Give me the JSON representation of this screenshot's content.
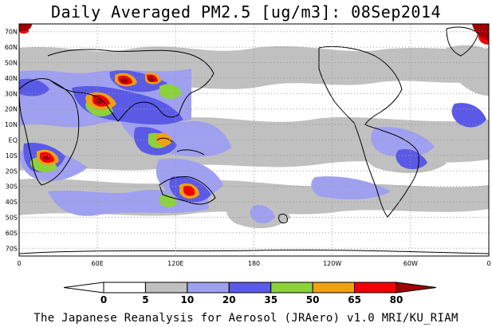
{
  "title": "Daily Averaged PM2.5 [ug/m3]: 08Sep2014",
  "footer": "The Japanese Reanalysis for Aerosol (JRAero) v1.0 MRI/KU_RIAM",
  "map": {
    "lon_range": [
      0,
      360
    ],
    "lat_range": [
      -75,
      75
    ],
    "lat_ticks": [
      {
        "lat": 70,
        "label": "70N"
      },
      {
        "lat": 60,
        "label": "60N"
      },
      {
        "lat": 50,
        "label": "50N"
      },
      {
        "lat": 40,
        "label": "40N"
      },
      {
        "lat": 30,
        "label": "30N"
      },
      {
        "lat": 20,
        "label": "20N"
      },
      {
        "lat": 10,
        "label": "10N"
      },
      {
        "lat": 0,
        "label": "EQ"
      },
      {
        "lat": -10,
        "label": "10S"
      },
      {
        "lat": -20,
        "label": "20S"
      },
      {
        "lat": -30,
        "label": "30S"
      },
      {
        "lat": -40,
        "label": "40S"
      },
      {
        "lat": -50,
        "label": "50S"
      },
      {
        "lat": -60,
        "label": "60S"
      },
      {
        "lat": -70,
        "label": "70S"
      }
    ],
    "lon_ticks": [
      {
        "lon": 0,
        "label": "0"
      },
      {
        "lon": 60,
        "label": "60E"
      },
      {
        "lon": 120,
        "label": "120E"
      },
      {
        "lon": 180,
        "label": "180"
      },
      {
        "lon": 240,
        "label": "120W"
      },
      {
        "lon": 300,
        "label": "60W"
      },
      {
        "lon": 360,
        "label": "0"
      }
    ],
    "grid": true
  },
  "colorbar": {
    "boundaries": [
      "0",
      "5",
      "10",
      "20",
      "35",
      "50",
      "65",
      "80"
    ],
    "colors": [
      "#ffffff",
      "#ffffff",
      "#c0c0c0",
      "#a0a0f0",
      "#5a5ae6",
      "#8cd23c",
      "#f0a014",
      "#f00000",
      "#a00000"
    ]
  },
  "colors": {
    "land_outline": "#000000",
    "grid": "#9a9a9a"
  }
}
